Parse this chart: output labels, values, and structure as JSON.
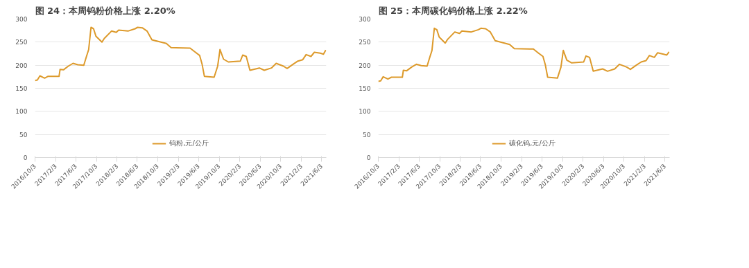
{
  "chart_data": [
    {
      "type": "line",
      "title": "图 24：本周钨粉价格上涨 2.20%",
      "legend": "bottom",
      "grid": "y",
      "ylim": [
        0,
        300
      ],
      "yticks": [
        0,
        50,
        100,
        150,
        200,
        250,
        300
      ],
      "xlim": [
        "2016-10-03",
        "2021-07-01"
      ],
      "xticks": [
        {
          "value": "2016-10-03",
          "label": "2016/10/3"
        },
        {
          "value": "2017-02-03",
          "label": "2017/2/3"
        },
        {
          "value": "2017-06-03",
          "label": "2017/6/3"
        },
        {
          "value": "2017-10-03",
          "label": "2017/10/3"
        },
        {
          "value": "2018-02-03",
          "label": "2018/2/3"
        },
        {
          "value": "2018-06-03",
          "label": "2018/6/3"
        },
        {
          "value": "2018-10-03",
          "label": "2018/10/3"
        },
        {
          "value": "2019-02-03",
          "label": "2019/2/3"
        },
        {
          "value": "2019-06-03",
          "label": "2019/6/3"
        },
        {
          "value": "2019-10-03",
          "label": "2019/10/3"
        },
        {
          "value": "2020-02-03",
          "label": "2020/2/3"
        },
        {
          "value": "2020-06-03",
          "label": "2020/6/3"
        },
        {
          "value": "2020-10-03",
          "label": "2020/10/3"
        },
        {
          "value": "2021-02-03",
          "label": "2021/2/3"
        },
        {
          "value": "2021-06-03",
          "label": "2021/6/3"
        }
      ],
      "x": [
        "2016-10-03",
        "2016-10-17",
        "2016-11-01",
        "2016-11-29",
        "2016-12-20",
        "2017-02-23",
        "2017-03-01",
        "2017-03-21",
        "2017-04-19",
        "2017-05-17",
        "2017-06-15",
        "2017-07-20",
        "2017-08-04",
        "2017-08-18",
        "2017-09-01",
        "2017-09-16",
        "2017-09-30",
        "2017-11-05",
        "2017-11-19",
        "2018-01-01",
        "2018-01-29",
        "2018-02-12",
        "2018-04-09",
        "2018-05-21",
        "2018-06-05",
        "2018-07-03",
        "2018-07-31",
        "2018-08-29",
        "2018-11-23",
        "2018-12-21",
        "2019-04-13",
        "2019-05-11",
        "2019-06-09",
        "2019-06-23",
        "2019-07-07",
        "2019-09-03",
        "2019-09-24",
        "2019-10-08",
        "2019-10-29",
        "2019-11-27",
        "2020-02-06",
        "2020-02-20",
        "2020-03-12",
        "2020-04-03",
        "2020-05-29",
        "2020-06-27",
        "2020-08-09",
        "2020-09-06",
        "2020-10-19",
        "2020-11-10",
        "2020-12-15",
        "2021-01-13",
        "2021-02-11",
        "2021-03-03",
        "2021-04-01",
        "2021-04-21",
        "2021-05-26",
        "2021-06-14",
        "2021-06-28"
      ],
      "series": [
        {
          "name": "钨粉,元/公斤",
          "color": "#dd9a2b",
          "values": [
            167,
            168,
            177,
            172,
            176,
            176,
            191,
            190,
            198,
            204,
            201,
            200,
            218,
            234,
            282,
            279,
            263,
            250,
            258,
            274,
            271,
            276,
            274,
            279,
            282,
            281,
            274,
            255,
            247,
            238,
            237,
            229,
            221,
            203,
            176,
            174,
            198,
            234,
            213,
            207,
            209,
            222,
            219,
            189,
            194,
            189,
            194,
            204,
            198,
            193,
            202,
            209,
            212,
            223,
            219,
            228,
            226,
            224,
            233
          ]
        }
      ]
    },
    {
      "type": "line",
      "title": "图 25：本周碳化钨价格上涨 2.22%",
      "legend": "bottom",
      "grid": "y",
      "ylim": [
        0,
        300
      ],
      "yticks": [
        0,
        50,
        100,
        150,
        200,
        250,
        300
      ],
      "xlim": [
        "2016-10-03",
        "2021-07-01"
      ],
      "xticks": [
        {
          "value": "2016-10-03",
          "label": "2016/10/3"
        },
        {
          "value": "2017-02-03",
          "label": "2017/2/3"
        },
        {
          "value": "2017-06-03",
          "label": "2017/6/3"
        },
        {
          "value": "2017-10-03",
          "label": "2017/10/3"
        },
        {
          "value": "2018-02-03",
          "label": "2018/2/3"
        },
        {
          "value": "2018-06-03",
          "label": "2018/6/3"
        },
        {
          "value": "2018-10-03",
          "label": "2018/10/3"
        },
        {
          "value": "2019-02-03",
          "label": "2019/2/3"
        },
        {
          "value": "2019-06-03",
          "label": "2019/6/3"
        },
        {
          "value": "2019-10-03",
          "label": "2019/10/3"
        },
        {
          "value": "2020-02-03",
          "label": "2020/2/3"
        },
        {
          "value": "2020-06-03",
          "label": "2020/6/3"
        },
        {
          "value": "2020-10-03",
          "label": "2020/10/3"
        },
        {
          "value": "2021-02-03",
          "label": "2021/2/3"
        },
        {
          "value": "2021-06-03",
          "label": "2021/6/3"
        }
      ],
      "x": [
        "2016-10-03",
        "2016-10-17",
        "2016-11-01",
        "2016-11-29",
        "2016-12-20",
        "2017-02-23",
        "2017-03-01",
        "2017-03-21",
        "2017-04-19",
        "2017-05-17",
        "2017-06-15",
        "2017-07-20",
        "2017-08-04",
        "2017-08-18",
        "2017-09-01",
        "2017-09-16",
        "2017-09-30",
        "2017-11-05",
        "2017-11-19",
        "2018-01-01",
        "2018-01-29",
        "2018-02-12",
        "2018-04-09",
        "2018-05-21",
        "2018-06-05",
        "2018-07-03",
        "2018-07-31",
        "2018-08-29",
        "2018-11-23",
        "2018-12-21",
        "2019-04-13",
        "2019-05-11",
        "2019-06-09",
        "2019-06-23",
        "2019-07-07",
        "2019-09-03",
        "2019-09-24",
        "2019-10-08",
        "2019-10-29",
        "2019-11-27",
        "2020-02-06",
        "2020-02-20",
        "2020-03-12",
        "2020-04-03",
        "2020-05-29",
        "2020-06-27",
        "2020-08-09",
        "2020-09-06",
        "2020-10-19",
        "2020-11-10",
        "2020-12-15",
        "2021-01-13",
        "2021-02-11",
        "2021-03-03",
        "2021-04-01",
        "2021-04-21",
        "2021-05-26",
        "2021-06-14",
        "2021-06-28"
      ],
      "series": [
        {
          "name": "碳化钨,元/公斤",
          "color": "#dd9a2b",
          "values": [
            165,
            166,
            175,
            170,
            174,
            174,
            189,
            188,
            196,
            202,
            199,
            198,
            216,
            232,
            280,
            277,
            261,
            248,
            256,
            272,
            269,
            274,
            272,
            277,
            280,
            279,
            272,
            253,
            245,
            236,
            235,
            227,
            219,
            201,
            174,
            172,
            196,
            232,
            211,
            205,
            207,
            220,
            217,
            187,
            192,
            187,
            192,
            202,
            196,
            191,
            200,
            207,
            210,
            221,
            217,
            227,
            224,
            222,
            229
          ]
        }
      ]
    }
  ]
}
